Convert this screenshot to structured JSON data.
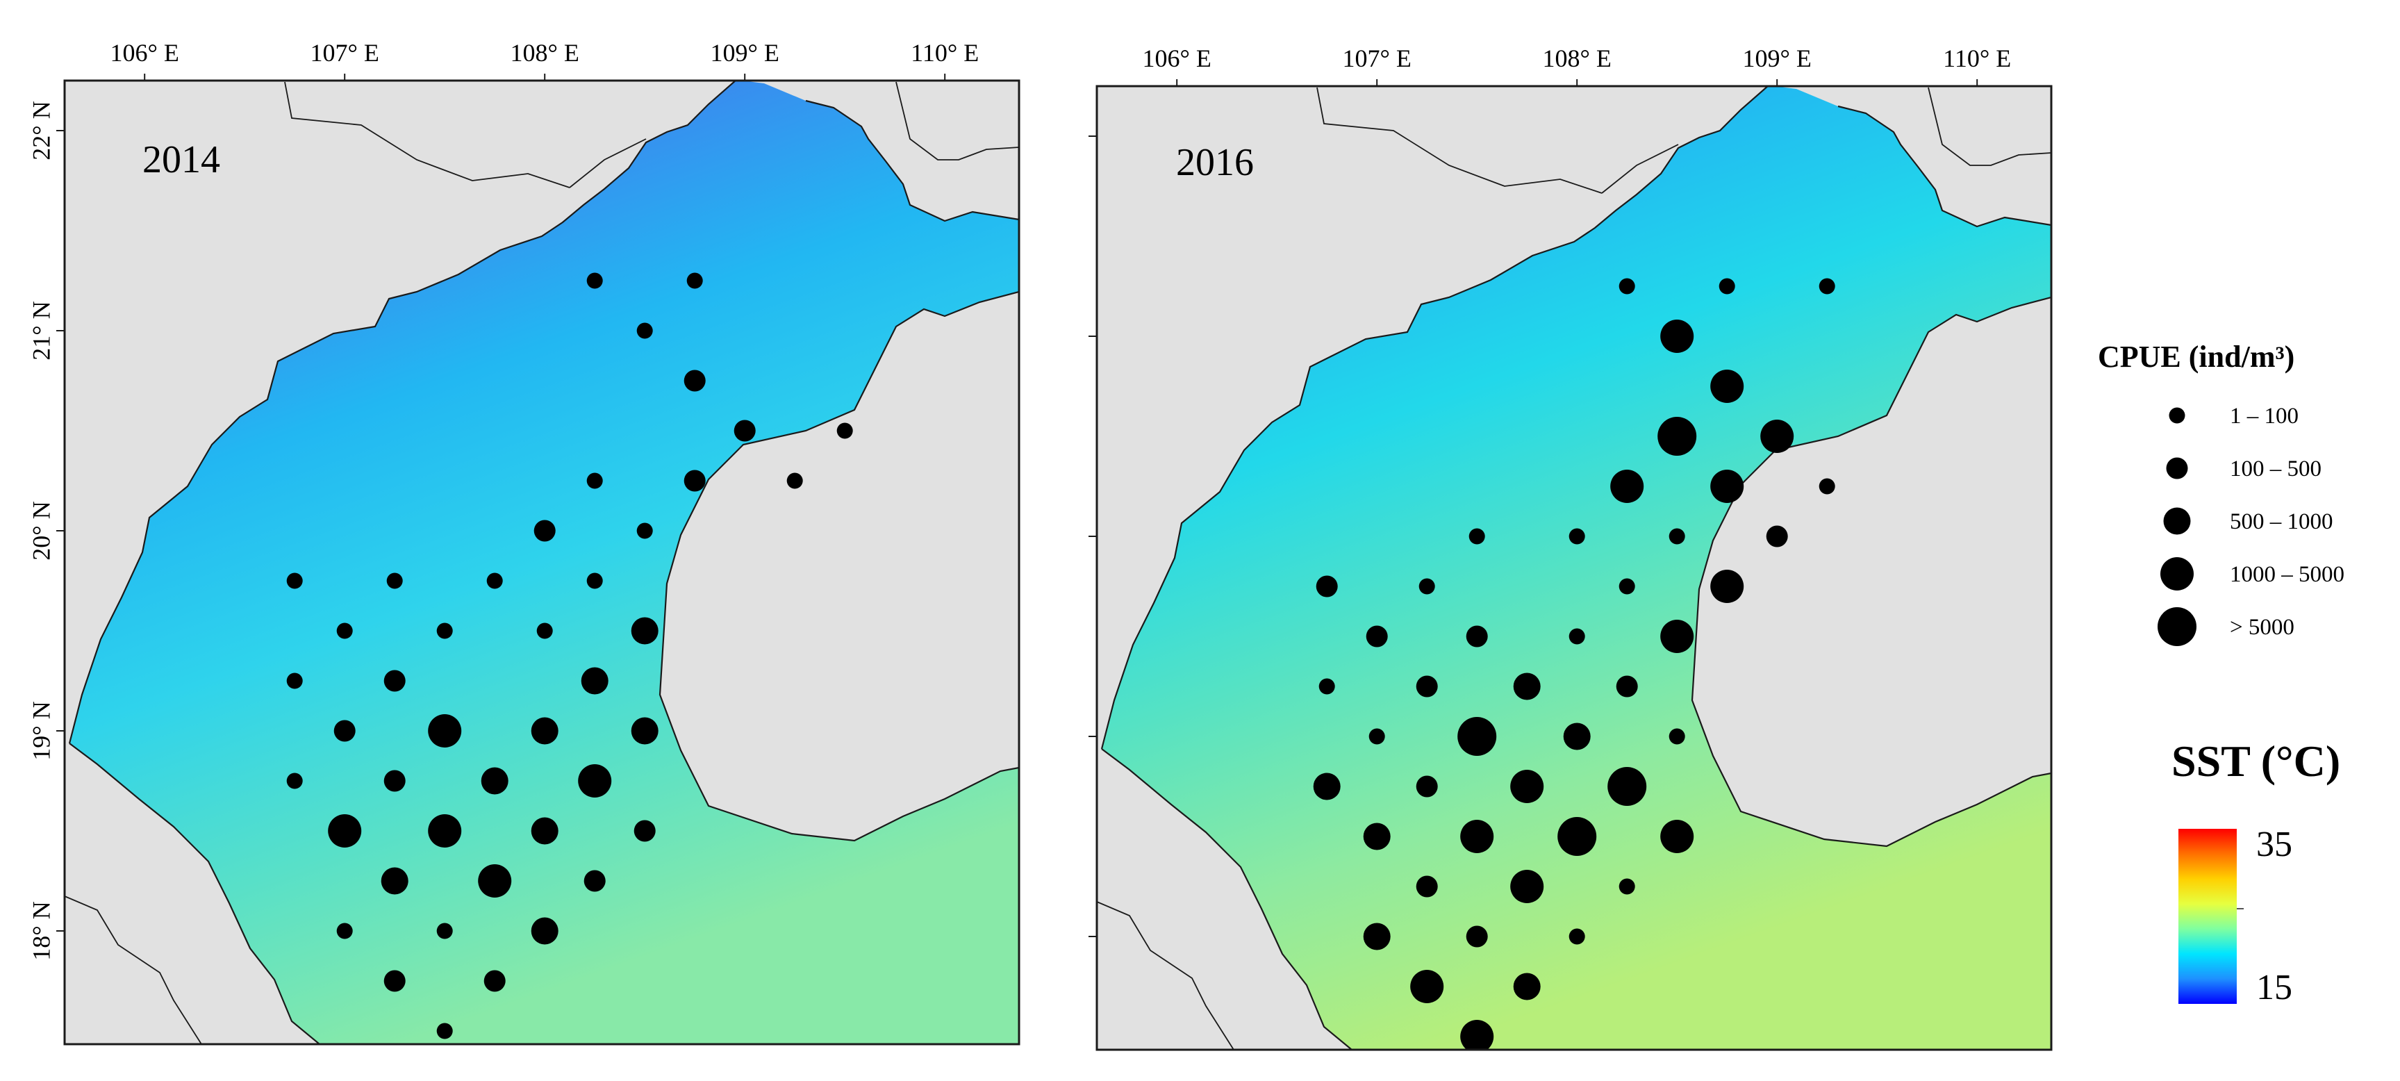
{
  "maps": [
    {
      "year": "2014",
      "lon_labels": [
        "106° E",
        "107° E",
        "108° E",
        "109° E",
        "110° E"
      ],
      "lat_labels": [
        "22° N",
        "21° N",
        "20° N",
        "19° N",
        "18° N"
      ],
      "sea_colors": [
        "#3e68e6",
        "#3b88ee",
        "#22b7f2",
        "#2fd3ec",
        "#58e0c8",
        "#88e9a8"
      ],
      "stations": [
        {
          "lon": 108.25,
          "lat": 21.25,
          "cls": 1
        },
        {
          "lon": 108.75,
          "lat": 21.25,
          "cls": 1
        },
        {
          "lon": 108.5,
          "lat": 21.0,
          "cls": 1
        },
        {
          "lon": 108.75,
          "lat": 20.75,
          "cls": 2
        },
        {
          "lon": 109.0,
          "lat": 20.5,
          "cls": 2
        },
        {
          "lon": 109.5,
          "lat": 20.5,
          "cls": 1
        },
        {
          "lon": 108.25,
          "lat": 20.25,
          "cls": 1
        },
        {
          "lon": 108.75,
          "lat": 20.25,
          "cls": 2
        },
        {
          "lon": 109.25,
          "lat": 20.25,
          "cls": 1
        },
        {
          "lon": 108.0,
          "lat": 20.0,
          "cls": 2
        },
        {
          "lon": 108.5,
          "lat": 20.0,
          "cls": 1
        },
        {
          "lon": 106.75,
          "lat": 19.75,
          "cls": 1
        },
        {
          "lon": 107.25,
          "lat": 19.75,
          "cls": 1
        },
        {
          "lon": 107.75,
          "lat": 19.75,
          "cls": 1
        },
        {
          "lon": 108.25,
          "lat": 19.75,
          "cls": 1
        },
        {
          "lon": 107.0,
          "lat": 19.5,
          "cls": 1
        },
        {
          "lon": 107.5,
          "lat": 19.5,
          "cls": 1
        },
        {
          "lon": 108.0,
          "lat": 19.5,
          "cls": 1
        },
        {
          "lon": 108.5,
          "lat": 19.5,
          "cls": 3
        },
        {
          "lon": 106.75,
          "lat": 19.25,
          "cls": 1
        },
        {
          "lon": 107.25,
          "lat": 19.25,
          "cls": 2
        },
        {
          "lon": 108.25,
          "lat": 19.25,
          "cls": 3
        },
        {
          "lon": 107.0,
          "lat": 19.0,
          "cls": 2
        },
        {
          "lon": 107.5,
          "lat": 19.0,
          "cls": 4
        },
        {
          "lon": 108.0,
          "lat": 19.0,
          "cls": 3
        },
        {
          "lon": 108.5,
          "lat": 19.0,
          "cls": 3
        },
        {
          "lon": 106.75,
          "lat": 18.75,
          "cls": 1
        },
        {
          "lon": 107.25,
          "lat": 18.75,
          "cls": 2
        },
        {
          "lon": 107.75,
          "lat": 18.75,
          "cls": 3
        },
        {
          "lon": 108.25,
          "lat": 18.75,
          "cls": 4
        },
        {
          "lon": 107.0,
          "lat": 18.5,
          "cls": 4
        },
        {
          "lon": 107.5,
          "lat": 18.5,
          "cls": 4
        },
        {
          "lon": 108.0,
          "lat": 18.5,
          "cls": 3
        },
        {
          "lon": 108.5,
          "lat": 18.5,
          "cls": 2
        },
        {
          "lon": 107.25,
          "lat": 18.25,
          "cls": 3
        },
        {
          "lon": 107.75,
          "lat": 18.25,
          "cls": 4
        },
        {
          "lon": 108.25,
          "lat": 18.25,
          "cls": 2
        },
        {
          "lon": 107.0,
          "lat": 18.0,
          "cls": 1
        },
        {
          "lon": 107.5,
          "lat": 18.0,
          "cls": 1
        },
        {
          "lon": 108.0,
          "lat": 18.0,
          "cls": 3
        },
        {
          "lon": 107.25,
          "lat": 17.75,
          "cls": 2
        },
        {
          "lon": 107.75,
          "lat": 17.75,
          "cls": 2
        },
        {
          "lon": 107.5,
          "lat": 17.5,
          "cls": 1
        }
      ]
    },
    {
      "year": "2016",
      "lon_labels": [
        "106° E",
        "107° E",
        "108° E",
        "109° E",
        "110° E"
      ],
      "lat_labels": [
        "",
        "",
        "",
        "",
        ""
      ],
      "sea_colors": [
        "#2f8ef0",
        "#22b6f2",
        "#22d8ea",
        "#55e2c4",
        "#8eeaa0",
        "#b7ee7a"
      ],
      "stations": [
        {
          "lon": 108.25,
          "lat": 21.25,
          "cls": 1
        },
        {
          "lon": 108.75,
          "lat": 21.25,
          "cls": 1
        },
        {
          "lon": 109.25,
          "lat": 21.25,
          "cls": 1
        },
        {
          "lon": 108.5,
          "lat": 21.0,
          "cls": 4
        },
        {
          "lon": 108.75,
          "lat": 20.75,
          "cls": 4
        },
        {
          "lon": 108.5,
          "lat": 20.5,
          "cls": 5
        },
        {
          "lon": 109.0,
          "lat": 20.5,
          "cls": 4
        },
        {
          "lon": 108.25,
          "lat": 20.25,
          "cls": 4
        },
        {
          "lon": 108.75,
          "lat": 20.25,
          "cls": 4
        },
        {
          "lon": 109.25,
          "lat": 20.25,
          "cls": 1
        },
        {
          "lon": 107.5,
          "lat": 20.0,
          "cls": 1
        },
        {
          "lon": 108.0,
          "lat": 20.0,
          "cls": 1
        },
        {
          "lon": 108.5,
          "lat": 20.0,
          "cls": 1
        },
        {
          "lon": 109.0,
          "lat": 20.0,
          "cls": 2
        },
        {
          "lon": 106.75,
          "lat": 19.75,
          "cls": 2
        },
        {
          "lon": 107.25,
          "lat": 19.75,
          "cls": 1
        },
        {
          "lon": 108.25,
          "lat": 19.75,
          "cls": 1
        },
        {
          "lon": 108.75,
          "lat": 19.75,
          "cls": 4
        },
        {
          "lon": 107.0,
          "lat": 19.5,
          "cls": 2
        },
        {
          "lon": 107.5,
          "lat": 19.5,
          "cls": 2
        },
        {
          "lon": 108.0,
          "lat": 19.5,
          "cls": 1
        },
        {
          "lon": 108.5,
          "lat": 19.5,
          "cls": 4
        },
        {
          "lon": 106.75,
          "lat": 19.25,
          "cls": 1
        },
        {
          "lon": 107.25,
          "lat": 19.25,
          "cls": 2
        },
        {
          "lon": 107.75,
          "lat": 19.25,
          "cls": 3
        },
        {
          "lon": 108.25,
          "lat": 19.25,
          "cls": 2
        },
        {
          "lon": 107.0,
          "lat": 19.0,
          "cls": 1
        },
        {
          "lon": 107.5,
          "lat": 19.0,
          "cls": 5
        },
        {
          "lon": 108.0,
          "lat": 19.0,
          "cls": 3
        },
        {
          "lon": 108.5,
          "lat": 19.0,
          "cls": 1
        },
        {
          "lon": 106.75,
          "lat": 18.75,
          "cls": 3
        },
        {
          "lon": 107.25,
          "lat": 18.75,
          "cls": 2
        },
        {
          "lon": 107.75,
          "lat": 18.75,
          "cls": 4
        },
        {
          "lon": 108.25,
          "lat": 18.75,
          "cls": 5
        },
        {
          "lon": 107.0,
          "lat": 18.5,
          "cls": 3
        },
        {
          "lon": 107.5,
          "lat": 18.5,
          "cls": 4
        },
        {
          "lon": 108.0,
          "lat": 18.5,
          "cls": 5
        },
        {
          "lon": 108.5,
          "lat": 18.5,
          "cls": 4
        },
        {
          "lon": 107.25,
          "lat": 18.25,
          "cls": 2
        },
        {
          "lon": 107.75,
          "lat": 18.25,
          "cls": 4
        },
        {
          "lon": 108.25,
          "lat": 18.25,
          "cls": 1
        },
        {
          "lon": 107.0,
          "lat": 18.0,
          "cls": 3
        },
        {
          "lon": 107.5,
          "lat": 18.0,
          "cls": 2
        },
        {
          "lon": 108.0,
          "lat": 18.0,
          "cls": 1
        },
        {
          "lon": 107.25,
          "lat": 17.75,
          "cls": 4
        },
        {
          "lon": 107.75,
          "lat": 17.75,
          "cls": 3
        },
        {
          "lon": 107.5,
          "lat": 17.5,
          "cls": 4
        }
      ]
    }
  ],
  "cpue_legend": {
    "title": "CPUE (ind/m³)",
    "classes": [
      "1 – 100",
      "100 – 500",
      "500 – 1000",
      "1000 – 5000",
      "> 5000"
    ]
  },
  "sst_legend": {
    "title": "SST (°C)",
    "max": "35",
    "min": "15",
    "colors": [
      "#0000ff",
      "#1e90ff",
      "#00e5ff",
      "#7fffa0",
      "#e6ff40",
      "#ffd000",
      "#ff7000",
      "#ff0000"
    ]
  },
  "colors": {
    "land": "#e1e1e1",
    "coast": "#1a1a1a",
    "dot": "#000000"
  }
}
